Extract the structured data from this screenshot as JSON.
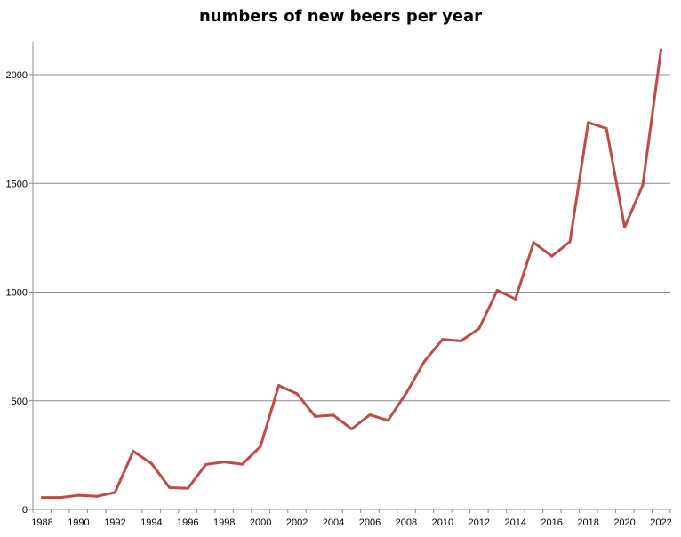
{
  "chart_data": {
    "type": "line",
    "title": "numbers of new beers per year",
    "xlabel": "",
    "ylabel": "",
    "x": [
      1988,
      1989,
      1990,
      1991,
      1992,
      1993,
      1994,
      1995,
      1996,
      1997,
      1998,
      1999,
      2000,
      2001,
      2002,
      2003,
      2004,
      2005,
      2006,
      2007,
      2008,
      2009,
      2010,
      2011,
      2012,
      2013,
      2014,
      2015,
      2016,
      2017,
      2018,
      2019,
      2020,
      2021,
      2022
    ],
    "series": [
      {
        "values": [
          55,
          55,
          65,
          60,
          78,
          268,
          212,
          100,
          97,
          207,
          218,
          208,
          290,
          570,
          532,
          428,
          434,
          370,
          435,
          410,
          535,
          682,
          783,
          775,
          832,
          1008,
          968,
          1228,
          1165,
          1232,
          1780,
          1752,
          1298,
          1492,
          2115
        ],
        "color": "#be4b48"
      }
    ],
    "xlim": [
      1988,
      2022
    ],
    "ylim": [
      0,
      2200
    ],
    "x_ticks": [
      "1988",
      "1990",
      "1992",
      "1994",
      "1996",
      "1998",
      "2000",
      "2002",
      "2004",
      "2006",
      "2008",
      "2010",
      "2012",
      "2014",
      "2016",
      "2018",
      "2020",
      "2022"
    ],
    "y_ticks": [
      "0",
      "500",
      "1000",
      "1500",
      "2000"
    ],
    "grid": true,
    "legend": "none"
  }
}
